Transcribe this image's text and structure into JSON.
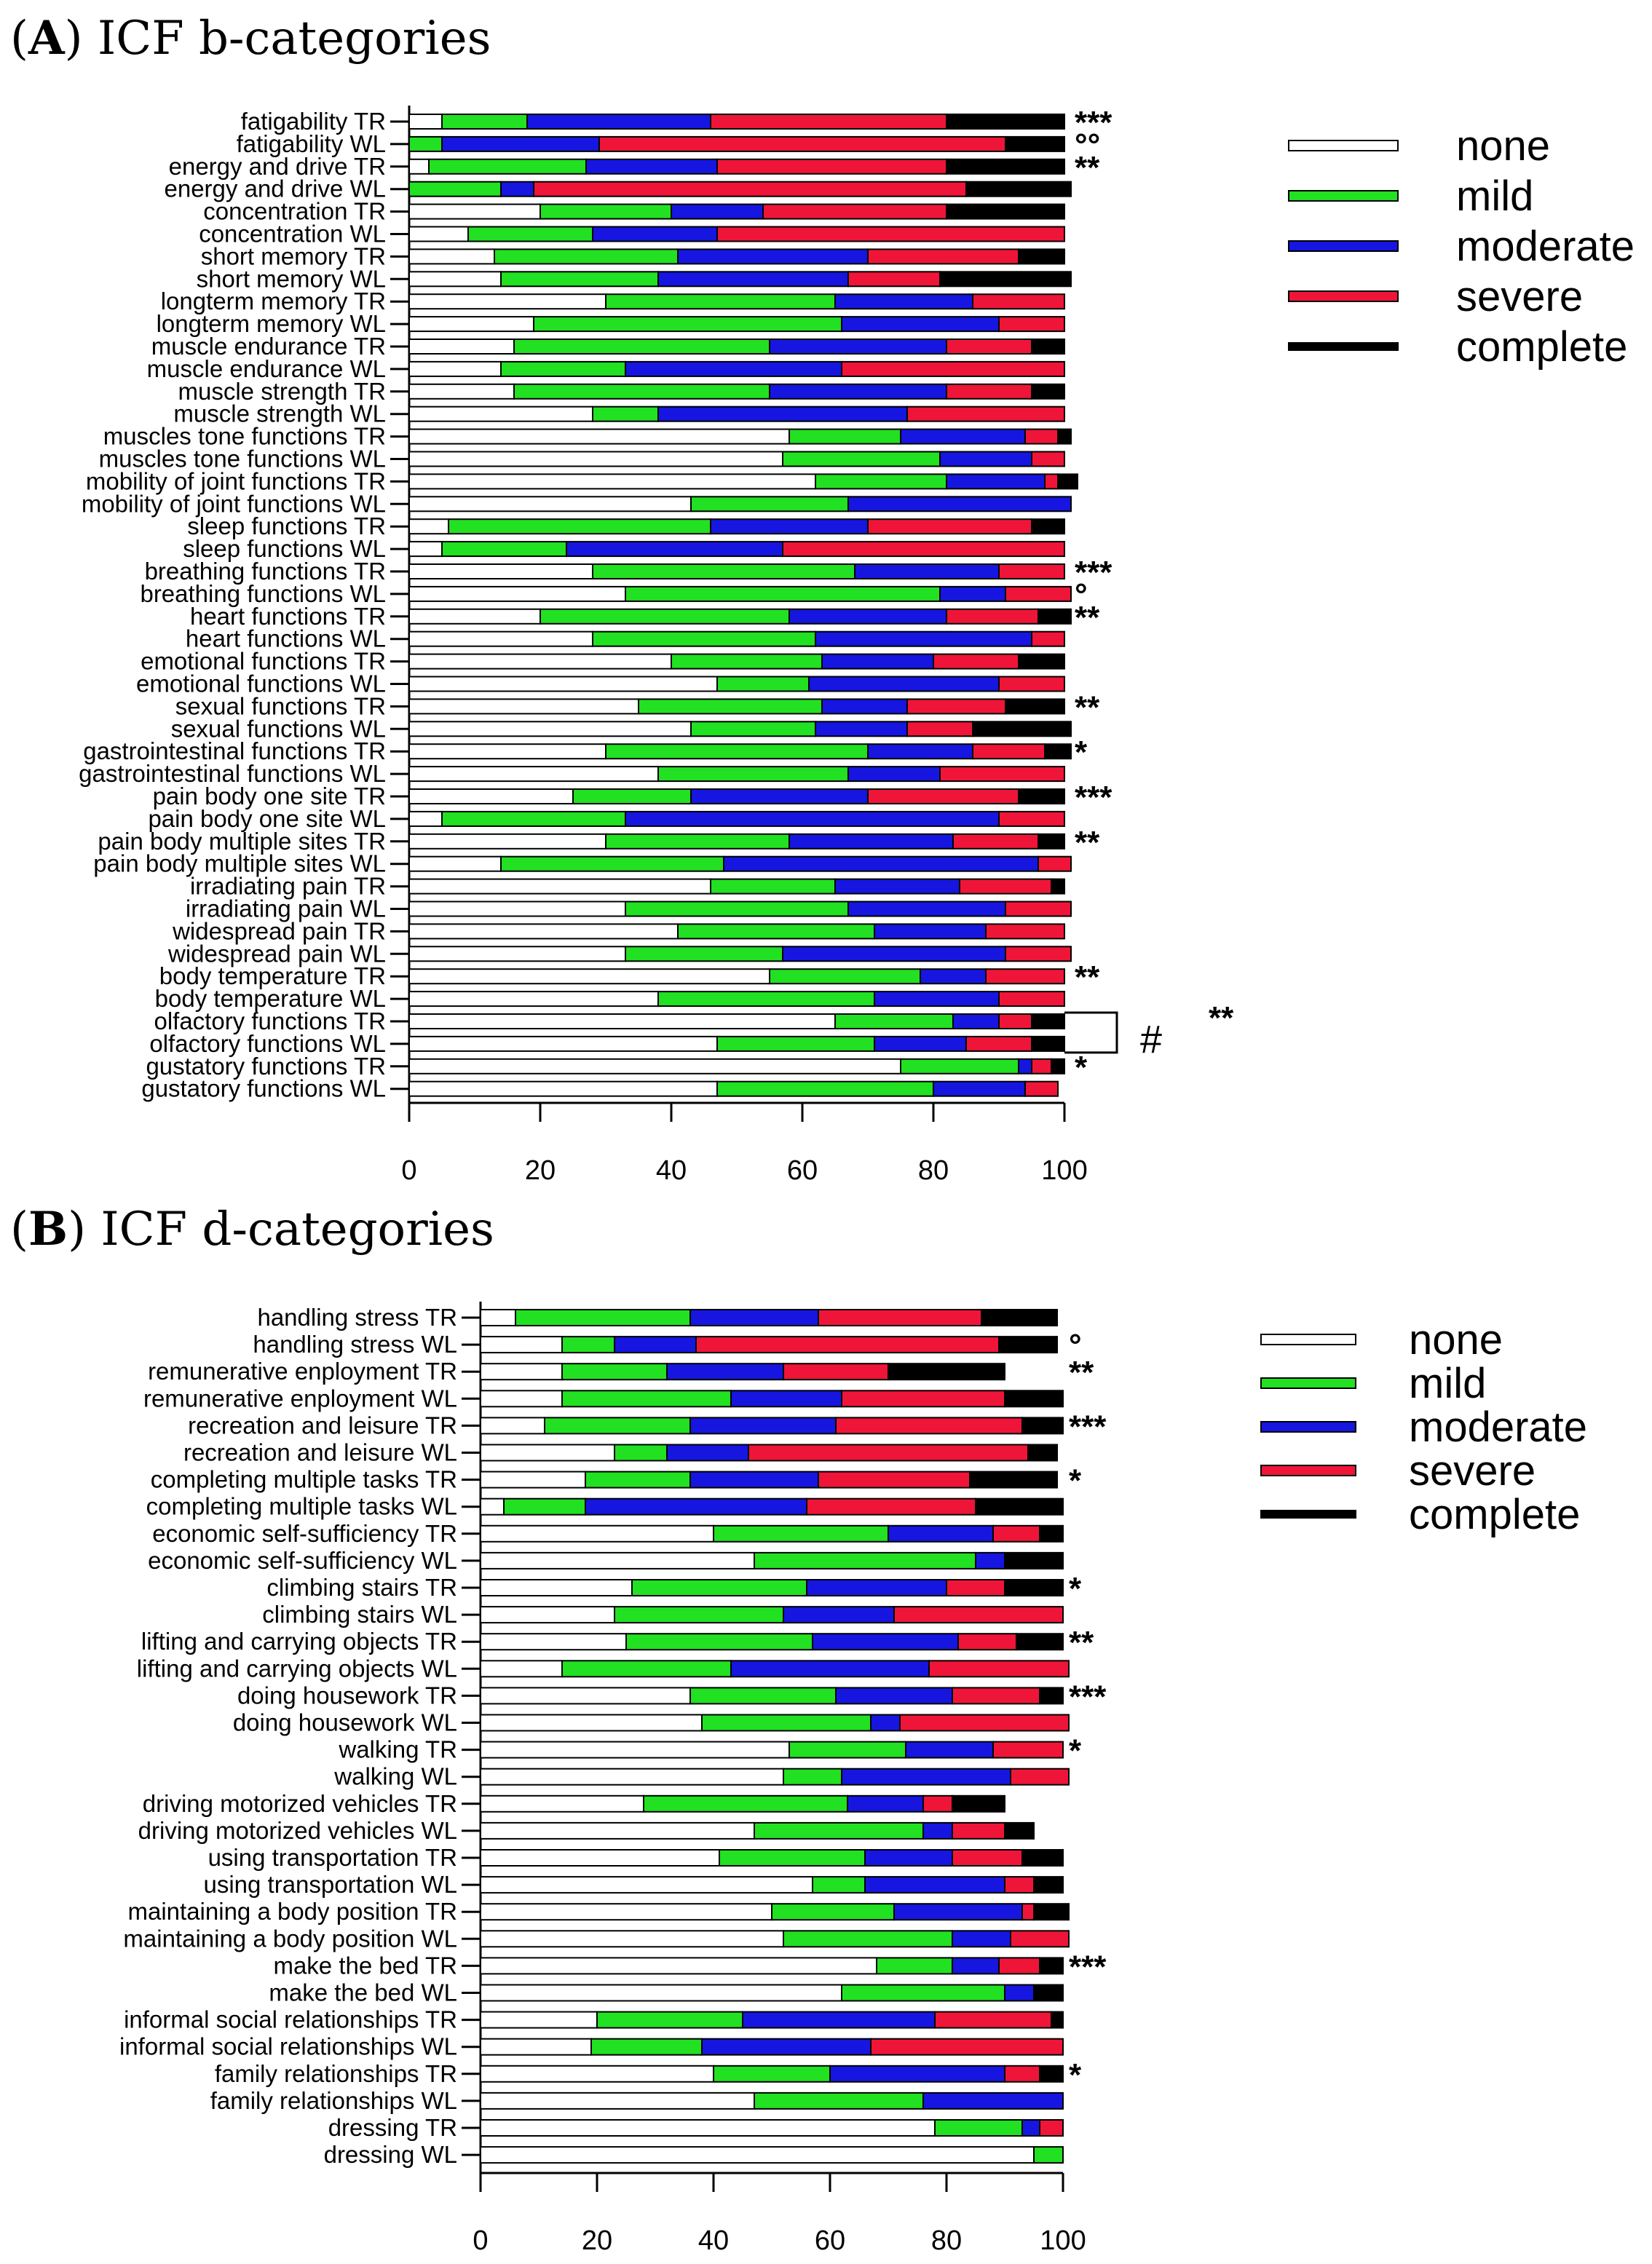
{
  "colors": {
    "none": "#ffffff",
    "mild": "#22e022",
    "moderate": "#1616e0",
    "severe": "#ef1538",
    "complete": "#000000"
  },
  "chart_data": [
    {
      "type": "bar",
      "orientation": "horizontal-stacked",
      "title": "(A) ICF b-categories",
      "title_parts": [
        "(",
        "A",
        ") ICF b-categories"
      ],
      "xlim": [
        0,
        100
      ],
      "xticks": [
        "0",
        "20",
        "40",
        "60",
        "80",
        "100"
      ],
      "legend": [
        "none",
        "mild",
        "moderate",
        "severe",
        "complete"
      ],
      "legend_position": "top-right",
      "note": {
        "text": "#",
        "sig": "**"
      },
      "rows": [
        {
          "label": "fatigability TR",
          "v": [
            5,
            13,
            28,
            36,
            18
          ],
          "sig": "***"
        },
        {
          "label": "fatigability WL",
          "v": [
            0,
            5,
            24,
            62,
            9
          ],
          "sig": "°°"
        },
        {
          "label": "energy and drive TR",
          "v": [
            3,
            24,
            20,
            35,
            18
          ],
          "sig": "**"
        },
        {
          "label": "energy and drive WL",
          "v": [
            0,
            14,
            5,
            66,
            16
          ],
          "sig": ""
        },
        {
          "label": "concentration TR",
          "v": [
            20,
            20,
            14,
            28,
            18
          ],
          "sig": ""
        },
        {
          "label": "concentration WL",
          "v": [
            9,
            19,
            19,
            53,
            0
          ],
          "sig": ""
        },
        {
          "label": "short memory TR",
          "v": [
            13,
            28,
            29,
            23,
            7
          ],
          "sig": ""
        },
        {
          "label": "short memory WL",
          "v": [
            14,
            24,
            29,
            14,
            20
          ],
          "sig": ""
        },
        {
          "label": "longterm memory TR",
          "v": [
            30,
            35,
            21,
            14,
            0
          ],
          "sig": ""
        },
        {
          "label": "longterm memory WL",
          "v": [
            19,
            47,
            24,
            10,
            0
          ],
          "sig": ""
        },
        {
          "label": "muscle endurance TR",
          "v": [
            16,
            39,
            27,
            13,
            5
          ],
          "sig": ""
        },
        {
          "label": "muscle endurance WL",
          "v": [
            14,
            19,
            33,
            34,
            0
          ],
          "sig": ""
        },
        {
          "label": "muscle strength TR",
          "v": [
            16,
            39,
            27,
            13,
            5
          ],
          "sig": ""
        },
        {
          "label": "muscle strength WL",
          "v": [
            28,
            10,
            38,
            24,
            0
          ],
          "sig": ""
        },
        {
          "label": "muscles tone functions TR",
          "v": [
            58,
            17,
            19,
            5,
            2
          ],
          "sig": ""
        },
        {
          "label": "muscles tone functions WL",
          "v": [
            57,
            24,
            14,
            5,
            0
          ],
          "sig": ""
        },
        {
          "label": "mobility of joint functions TR",
          "v": [
            62,
            20,
            15,
            2,
            3
          ],
          "sig": ""
        },
        {
          "label": "mobility of joint functions WL",
          "v": [
            43,
            24,
            34,
            0,
            0
          ],
          "sig": ""
        },
        {
          "label": "sleep functions TR",
          "v": [
            6,
            40,
            24,
            25,
            5
          ],
          "sig": ""
        },
        {
          "label": "sleep functions WL",
          "v": [
            5,
            19,
            33,
            43,
            0
          ],
          "sig": ""
        },
        {
          "label": "breathing functions TR",
          "v": [
            28,
            40,
            22,
            10,
            0
          ],
          "sig": "***"
        },
        {
          "label": "breathing functions WL",
          "v": [
            33,
            48,
            10,
            10,
            0
          ],
          "sig": "°"
        },
        {
          "label": "heart functions TR",
          "v": [
            20,
            38,
            24,
            14,
            5
          ],
          "sig": "**"
        },
        {
          "label": "heart functions WL",
          "v": [
            28,
            34,
            33,
            5,
            0
          ],
          "sig": ""
        },
        {
          "label": "emotional functions TR",
          "v": [
            40,
            23,
            17,
            13,
            7
          ],
          "sig": ""
        },
        {
          "label": "emotional functions WL",
          "v": [
            47,
            14,
            29,
            10,
            0
          ],
          "sig": ""
        },
        {
          "label": "sexual functions TR",
          "v": [
            35,
            28,
            13,
            15,
            9
          ],
          "sig": "**"
        },
        {
          "label": "sexual functions WL",
          "v": [
            43,
            19,
            14,
            10,
            15
          ],
          "sig": ""
        },
        {
          "label": "gastrointestinal functions TR",
          "v": [
            30,
            40,
            16,
            11,
            4
          ],
          "sig": "*"
        },
        {
          "label": "gastrointestinal functions WL",
          "v": [
            38,
            29,
            14,
            19,
            0
          ],
          "sig": ""
        },
        {
          "label": "pain body one site TR",
          "v": [
            25,
            18,
            27,
            23,
            7
          ],
          "sig": "***"
        },
        {
          "label": "pain body one site WL",
          "v": [
            5,
            28,
            57,
            10,
            0
          ],
          "sig": ""
        },
        {
          "label": "pain body multiple sites TR",
          "v": [
            30,
            28,
            25,
            13,
            4
          ],
          "sig": "**"
        },
        {
          "label": "pain body multiple sites WL",
          "v": [
            14,
            34,
            48,
            5,
            0
          ],
          "sig": ""
        },
        {
          "label": "irradiating pain TR",
          "v": [
            46,
            19,
            19,
            14,
            2
          ],
          "sig": ""
        },
        {
          "label": "irradiating pain WL",
          "v": [
            33,
            34,
            24,
            10,
            0
          ],
          "sig": ""
        },
        {
          "label": "widespread pain TR",
          "v": [
            41,
            30,
            17,
            12,
            0
          ],
          "sig": ""
        },
        {
          "label": "widespread pain WL",
          "v": [
            33,
            24,
            34,
            10,
            0
          ],
          "sig": ""
        },
        {
          "label": "body temperature TR",
          "v": [
            55,
            23,
            10,
            12,
            0
          ],
          "sig": "**"
        },
        {
          "label": "body temperature WL",
          "v": [
            38,
            33,
            19,
            10,
            0
          ],
          "sig": ""
        },
        {
          "label": "olfactory functions TR",
          "v": [
            65,
            18,
            7,
            5,
            5
          ],
          "sig": ""
        },
        {
          "label": "olfactory functions WL",
          "v": [
            47,
            24,
            14,
            10,
            5
          ],
          "sig": ""
        },
        {
          "label": "gustatory functions TR",
          "v": [
            75,
            18,
            2,
            3,
            2
          ],
          "sig": "*"
        },
        {
          "label": "gustatory functions WL",
          "v": [
            47,
            33,
            14,
            5,
            0
          ],
          "sig": ""
        }
      ]
    },
    {
      "type": "bar",
      "orientation": "horizontal-stacked",
      "title": "(B) ICF d-categories",
      "title_parts": [
        "(",
        "B",
        ") ICF d-categories"
      ],
      "xlim": [
        0,
        100
      ],
      "xticks": [
        "0",
        "20",
        "40",
        "60",
        "80",
        "100"
      ],
      "legend": [
        "none",
        "mild",
        "moderate",
        "severe",
        "complete"
      ],
      "legend_position": "top-right",
      "rows": [
        {
          "label": "handling stress TR",
          "v": [
            6,
            30,
            22,
            28,
            13
          ],
          "sig": ""
        },
        {
          "label": "handling stress WL",
          "v": [
            14,
            9,
            14,
            52,
            10
          ],
          "sig": "°"
        },
        {
          "label": "remunerative enployment TR",
          "v": [
            14,
            18,
            20,
            18,
            20
          ],
          "sig": "**"
        },
        {
          "label": "remunerative enployment WL",
          "v": [
            14,
            29,
            19,
            28,
            10
          ],
          "sig": ""
        },
        {
          "label": "recreation and leisure TR",
          "v": [
            11,
            25,
            25,
            32,
            7
          ],
          "sig": "***"
        },
        {
          "label": "recreation and leisure WL",
          "v": [
            23,
            9,
            14,
            48,
            5
          ],
          "sig": ""
        },
        {
          "label": "completing multiple tasks TR",
          "v": [
            18,
            18,
            22,
            26,
            15
          ],
          "sig": "*"
        },
        {
          "label": "completing multiple tasks WL",
          "v": [
            4,
            14,
            38,
            29,
            15
          ],
          "sig": ""
        },
        {
          "label": "economic self-sufficiency TR",
          "v": [
            40,
            30,
            18,
            8,
            4
          ],
          "sig": ""
        },
        {
          "label": "economic self-sufficiency WL",
          "v": [
            47,
            38,
            5,
            0,
            10
          ],
          "sig": ""
        },
        {
          "label": "climbing stairs TR",
          "v": [
            26,
            30,
            24,
            10,
            10
          ],
          "sig": "*"
        },
        {
          "label": "climbing stairs WL",
          "v": [
            23,
            29,
            19,
            29,
            0
          ],
          "sig": ""
        },
        {
          "label": "lifting and carrying objects TR",
          "v": [
            25,
            32,
            25,
            10,
            8
          ],
          "sig": "**"
        },
        {
          "label": "lifting and carrying objects WL",
          "v": [
            14,
            29,
            34,
            24,
            0
          ],
          "sig": ""
        },
        {
          "label": "doing housework TR",
          "v": [
            36,
            25,
            20,
            15,
            4
          ],
          "sig": "***"
        },
        {
          "label": "doing housework WL",
          "v": [
            38,
            29,
            5,
            29,
            0
          ],
          "sig": ""
        },
        {
          "label": "walking TR",
          "v": [
            53,
            20,
            15,
            12,
            0
          ],
          "sig": "*"
        },
        {
          "label": "walking WL",
          "v": [
            52,
            10,
            29,
            10,
            0
          ],
          "sig": ""
        },
        {
          "label": "driving motorized vehicles TR",
          "v": [
            28,
            35,
            13,
            5,
            9
          ],
          "sig": ""
        },
        {
          "label": "driving motorized vehicles WL",
          "v": [
            47,
            29,
            5,
            9,
            5
          ],
          "sig": ""
        },
        {
          "label": "using transportation TR",
          "v": [
            41,
            25,
            15,
            12,
            7
          ],
          "sig": ""
        },
        {
          "label": "using transportation WL",
          "v": [
            57,
            9,
            24,
            5,
            5
          ],
          "sig": ""
        },
        {
          "label": "maintaining a body position TR",
          "v": [
            50,
            21,
            22,
            2,
            6
          ],
          "sig": ""
        },
        {
          "label": "maintaining a body position WL",
          "v": [
            52,
            29,
            10,
            10,
            0
          ],
          "sig": ""
        },
        {
          "label": "make the bed TR",
          "v": [
            68,
            13,
            8,
            7,
            4
          ],
          "sig": "***"
        },
        {
          "label": "make the bed WL",
          "v": [
            62,
            28,
            5,
            0,
            5
          ],
          "sig": ""
        },
        {
          "label": "informal social relationships TR",
          "v": [
            20,
            25,
            33,
            20,
            2
          ],
          "sig": ""
        },
        {
          "label": "informal social relationships WL",
          "v": [
            19,
            19,
            29,
            33,
            0
          ],
          "sig": ""
        },
        {
          "label": "family relationships TR",
          "v": [
            40,
            20,
            30,
            6,
            4
          ],
          "sig": "*"
        },
        {
          "label": "family relationships WL",
          "v": [
            47,
            29,
            24,
            0,
            0
          ],
          "sig": ""
        },
        {
          "label": "dressing TR",
          "v": [
            78,
            15,
            3,
            4,
            0
          ],
          "sig": ""
        },
        {
          "label": "dressing  WL",
          "v": [
            95,
            5,
            0,
            0,
            0
          ],
          "sig": ""
        }
      ]
    }
  ]
}
